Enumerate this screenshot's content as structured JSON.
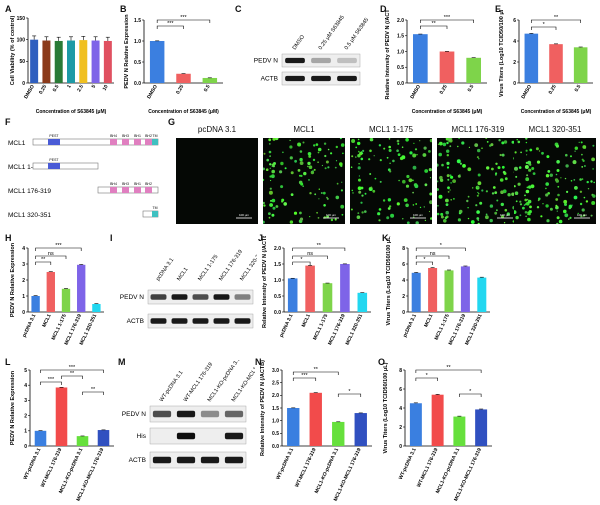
{
  "panel_labels": [
    "A",
    "B",
    "C",
    "D",
    "E",
    "F",
    "G",
    "H",
    "I",
    "J",
    "K",
    "L",
    "M",
    "N",
    "O"
  ],
  "colors": {
    "ctrl": "#3b7fe0",
    "red": "#f06060",
    "green": "#7ed44a",
    "purple": "#7e64e8",
    "cyan": "#22d7f0",
    "bar_blue": "#3a7fe0",
    "bar_red": "#f24b4b",
    "bar_green": "#66e03c",
    "bar_navy": "#3050c0"
  },
  "panelA": {
    "ylabel": "Cell Viability (% of control)",
    "xlabel": "Concentration of S63845 (μM)",
    "categories": [
      "DMSO",
      "0.25",
      "0.5",
      "1",
      "2.5",
      "5",
      "10"
    ],
    "values": [
      100,
      98,
      97,
      98,
      99,
      98,
      97
    ],
    "yticks": [
      "0",
      "50",
      "100",
      "150"
    ]
  },
  "panelB": {
    "ylabel": "PEDV N Relative Expression",
    "xlabel": "Concentration of S63845 (μM)",
    "categories": [
      "DMSO",
      "0.25",
      "0.5"
    ],
    "values": [
      1.0,
      0.22,
      0.12
    ],
    "yticks": [
      "0.0",
      "0.5",
      "1.0",
      "1.5"
    ],
    "sig": [
      "***",
      "***"
    ]
  },
  "panelC": {
    "lanes": [
      "DMSO",
      "0.25 μM S63845",
      "0.5 μM S63845"
    ],
    "rows": [
      "PEDV N",
      "ACTB"
    ]
  },
  "panelD": {
    "ylabel": "Relative Intensity of PEDV N (/ACTB)",
    "xlabel": "Concentration of S63845 (μM)",
    "categories": [
      "DMSO",
      "0.25",
      "0.5"
    ],
    "values": [
      1.55,
      1.0,
      0.8
    ],
    "yticks": [
      "0.0",
      "0.5",
      "1.0",
      "1.5",
      "2.0"
    ],
    "sig": [
      "**",
      "***"
    ]
  },
  "panelE": {
    "ylabel": "Virus Titers (Log10 TCID50/100 μL)",
    "xlabel": "Concentration of S63845 (μM)",
    "categories": [
      "DMSO",
      "0.25",
      "0.5"
    ],
    "values": [
      4.7,
      3.7,
      3.4
    ],
    "yticks": [
      "0",
      "2",
      "4",
      "6"
    ],
    "sig": [
      "*",
      "**"
    ]
  },
  "panelF": {
    "constructs": [
      "MCL1",
      "MCL1 1-175",
      "MCL1 176-319",
      "MCL1 320-351"
    ],
    "domains": [
      "PEST",
      "BH4",
      "BH3",
      "BH1",
      "BH2",
      "TM"
    ]
  },
  "panelG": {
    "titles": [
      "pcDNA 3.1",
      "MCL1",
      "MCL1 1-175",
      "MCL1 176-319",
      "MCL1 320-351"
    ],
    "scale": "100 μm"
  },
  "panelH": {
    "ylabel": "PEDV N Relative Expression",
    "categories": [
      "pcDNA 3.1",
      "MCL1",
      "MCL1 1-175",
      "MCL1 176-319",
      "MCL1 320-351"
    ],
    "values": [
      1.0,
      2.5,
      1.45,
      2.95,
      0.5
    ],
    "yticks": [
      "0",
      "1",
      "2",
      "3",
      "4"
    ],
    "sig": [
      "**",
      "ns",
      "***"
    ]
  },
  "panelI": {
    "lanes": [
      "pcDNA 3.1",
      "MCL1",
      "MCL1 1-175",
      "MCL1 176-319",
      "MCL1 320-351"
    ],
    "rows": [
      "PEDV N",
      "ACTB"
    ]
  },
  "panelJ": {
    "ylabel": "Relative Intensity of PEDV N (/ACTB)",
    "categories": [
      "pcDNA 3.1",
      "MCL1",
      "MCL1 1-175",
      "MCL1 176-319",
      "MCL1 320-351"
    ],
    "values": [
      1.05,
      1.45,
      0.9,
      1.5,
      0.6
    ],
    "yticks": [
      "0.0",
      "0.5",
      "1.0",
      "1.5",
      "2.0"
    ],
    "sig": [
      "*",
      "ns",
      "**"
    ]
  },
  "panelK": {
    "ylabel": "Virus Titers (Log10 TCID50/100 μL)",
    "categories": [
      "pcDNA 3.1",
      "MCL1",
      "MCL1 1-175",
      "MCL1 176-319",
      "MCL1 320-351"
    ],
    "values": [
      4.9,
      5.5,
      5.2,
      5.7,
      4.3
    ],
    "yticks": [
      "0",
      "2",
      "4",
      "6",
      "8"
    ],
    "sig": [
      "*",
      "ns",
      "*"
    ]
  },
  "panelL": {
    "ylabel": "PEDV N Relative Expression",
    "categories": [
      "WT-pcDNA 3.1",
      "WT-MCL1 176-319",
      "MCL1-KO-pcDNA 3.1",
      "MCL1-KO-MCL1 176-319"
    ],
    "values": [
      1.0,
      3.85,
      0.65,
      1.05
    ],
    "yticks": [
      "0",
      "1",
      "2",
      "3",
      "4",
      "5"
    ],
    "sig": [
      "***",
      "**",
      "***",
      "**"
    ]
  },
  "panelM": {
    "lanes": [
      "WT-pcDNA 3.1",
      "WT-MCL1 176-319",
      "MCL1-KO-pcDNA 3.1",
      "MCL1-KO-MCL1 176-319"
    ],
    "rows": [
      "PEDV N",
      "His",
      "ACTB"
    ]
  },
  "panelN": {
    "ylabel": "Relative Intensity of PEDV N (/ACTB)",
    "categories": [
      "WT-pcDNA 3.1",
      "WT-MCL1 176-319",
      "MCL1-KO-pcDNA 3.1",
      "MCL1-KO-MCL1 176-319"
    ],
    "values": [
      1.5,
      2.1,
      0.95,
      1.3
    ],
    "yticks": [
      "0.0",
      "0.5",
      "1.0",
      "1.5",
      "2.0",
      "2.5",
      "3.0"
    ],
    "sig": [
      "***",
      "**",
      "*"
    ]
  },
  "panelO": {
    "ylabel": "Virus Titers (Log10 TCID50/100 μL)",
    "categories": [
      "WT-pcDNA 3.1",
      "WT-MCL1 176-319",
      "MCL1-KO-pcDNA 3.1",
      "MCL1-KO-MCL1 176-319"
    ],
    "values": [
      4.5,
      5.4,
      3.1,
      3.85
    ],
    "yticks": [
      "0",
      "2",
      "4",
      "6",
      "8"
    ],
    "sig": [
      "*",
      "*",
      "**"
    ]
  },
  "chart_data": [
    {
      "type": "bar",
      "title": "A",
      "ylabel": "Cell Viability (% of control)",
      "xlabel": "Concentration of S63845 (μM)",
      "categories": [
        "DMSO",
        "0.25",
        "0.5",
        "1",
        "2.5",
        "5",
        "10"
      ],
      "values": [
        100,
        98,
        97,
        98,
        99,
        98,
        97
      ],
      "ylim": [
        0,
        150
      ]
    },
    {
      "type": "bar",
      "title": "B",
      "ylabel": "PEDV N Relative Expression",
      "xlabel": "Concentration of S63845 (μM)",
      "categories": [
        "DMSO",
        "0.25",
        "0.5"
      ],
      "values": [
        1.0,
        0.22,
        0.12
      ],
      "ylim": [
        0,
        1.5
      ]
    },
    {
      "type": "bar",
      "title": "D",
      "ylabel": "Relative Intensity of PEDV N (/ACTB)",
      "xlabel": "Concentration of S63845 (μM)",
      "categories": [
        "DMSO",
        "0.25",
        "0.5"
      ],
      "values": [
        1.55,
        1.0,
        0.8
      ],
      "ylim": [
        0,
        2.0
      ]
    },
    {
      "type": "bar",
      "title": "E",
      "ylabel": "Virus Titers (Log10 TCID50/100 μL)",
      "xlabel": "Concentration of S63845 (μM)",
      "categories": [
        "DMSO",
        "0.25",
        "0.5"
      ],
      "values": [
        4.7,
        3.7,
        3.4
      ],
      "ylim": [
        0,
        6
      ]
    },
    {
      "type": "bar",
      "title": "H",
      "ylabel": "PEDV N Relative Expression",
      "categories": [
        "pcDNA 3.1",
        "MCL1",
        "MCL1 1-175",
        "MCL1 176-319",
        "MCL1 320-351"
      ],
      "values": [
        1.0,
        2.5,
        1.45,
        2.95,
        0.5
      ],
      "ylim": [
        0,
        4
      ]
    },
    {
      "type": "bar",
      "title": "J",
      "ylabel": "Relative Intensity of PEDV N (/ACTB)",
      "categories": [
        "pcDNA 3.1",
        "MCL1",
        "MCL1 1-175",
        "MCL1 176-319",
        "MCL1 320-351"
      ],
      "values": [
        1.05,
        1.45,
        0.9,
        1.5,
        0.6
      ],
      "ylim": [
        0,
        2.0
      ]
    },
    {
      "type": "bar",
      "title": "K",
      "ylabel": "Virus Titers (Log10 TCID50/100 μL)",
      "categories": [
        "pcDNA 3.1",
        "MCL1",
        "MCL1 1-175",
        "MCL1 176-319",
        "MCL1 320-351"
      ],
      "values": [
        4.9,
        5.5,
        5.2,
        5.7,
        4.3
      ],
      "ylim": [
        0,
        8
      ]
    },
    {
      "type": "bar",
      "title": "L",
      "ylabel": "PEDV N Relative Expression",
      "categories": [
        "WT-pcDNA 3.1",
        "WT-MCL1 176-319",
        "MCL1-KO-pcDNA 3.1",
        "MCL1-KO-MCL1 176-319"
      ],
      "values": [
        1.0,
        3.85,
        0.65,
        1.05
      ],
      "ylim": [
        0,
        5
      ]
    },
    {
      "type": "bar",
      "title": "N",
      "ylabel": "Relative Intensity of PEDV N (/ACTB)",
      "categories": [
        "WT-pcDNA 3.1",
        "WT-MCL1 176-319",
        "MCL1-KO-pcDNA 3.1",
        "MCL1-KO-MCL1 176-319"
      ],
      "values": [
        1.5,
        2.1,
        0.95,
        1.3
      ],
      "ylim": [
        0,
        3.0
      ]
    },
    {
      "type": "bar",
      "title": "O",
      "ylabel": "Virus Titers (Log10 TCID50/100 μL)",
      "categories": [
        "WT-pcDNA 3.1",
        "WT-MCL1 176-319",
        "MCL1-KO-pcDNA 3.1",
        "MCL1-KO-MCL1 176-319"
      ],
      "values": [
        4.5,
        5.4,
        3.1,
        3.85
      ],
      "ylim": [
        0,
        8
      ]
    }
  ]
}
